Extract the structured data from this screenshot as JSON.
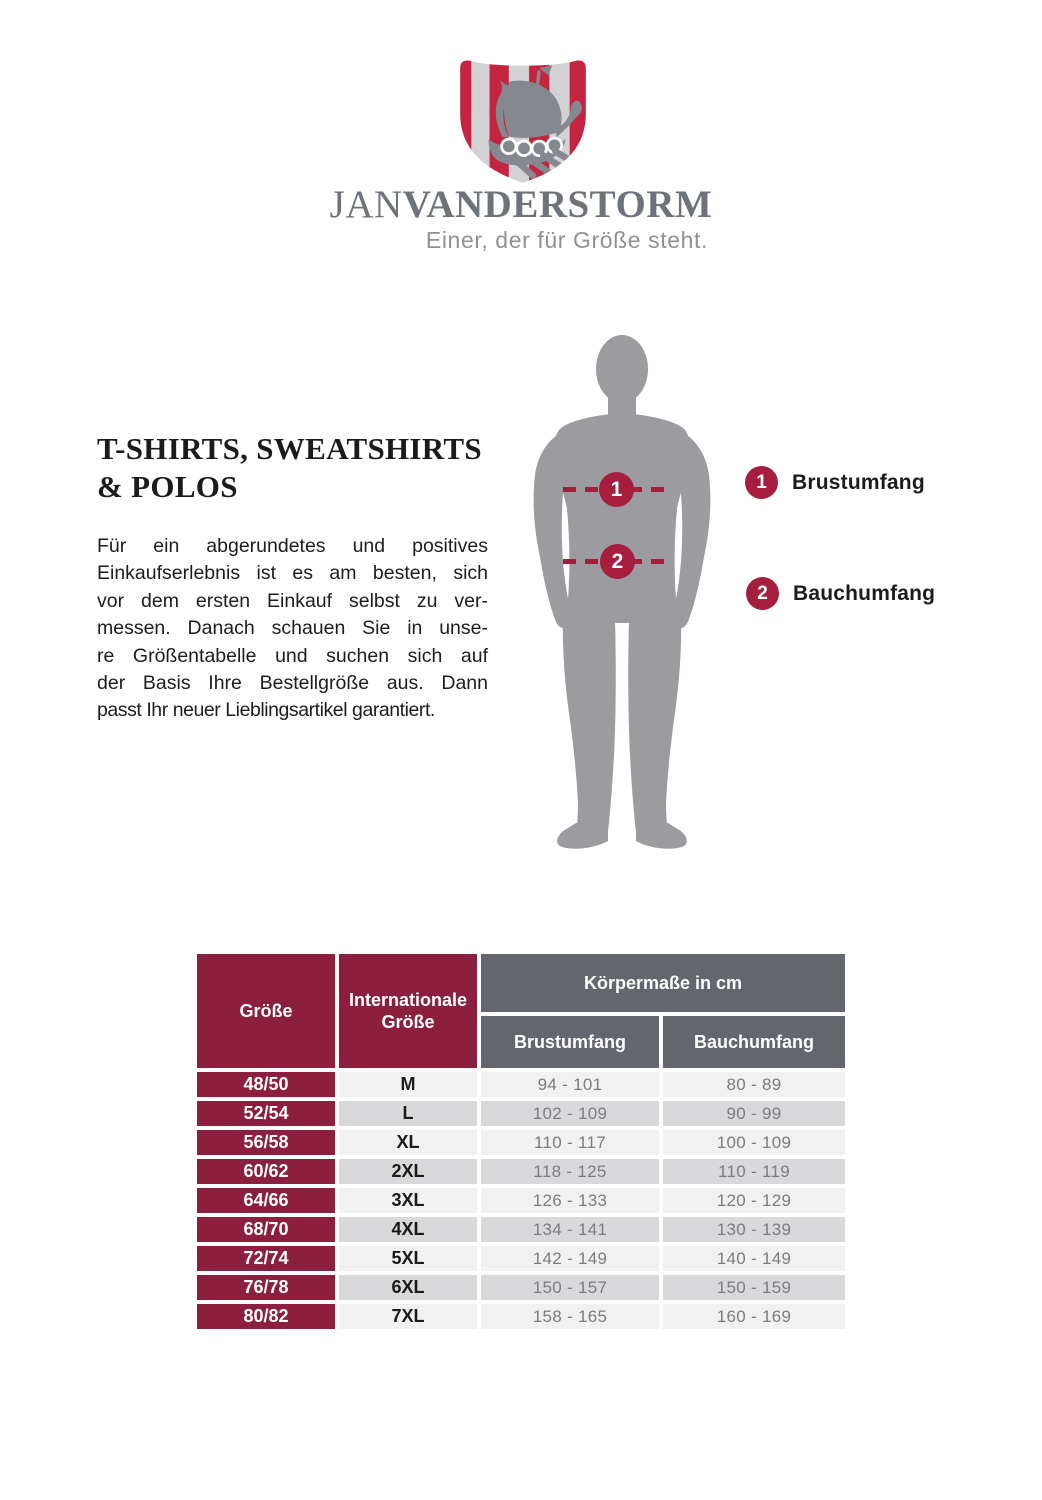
{
  "brand": {
    "name_light": "JAN",
    "name_bold": "VANDERSTORM",
    "tagline": "Einer, der für Größe steht.",
    "colors": {
      "stripe_red": "#c52441",
      "stripe_gray": "#d2d2d4",
      "ship_gray": "#85888e",
      "wordmark_gray": "#6e737b",
      "tagline_gray": "#8e9298"
    }
  },
  "section": {
    "heading_line1": "T-SHIRTS, SWEATSHIRTS",
    "heading_line2": "& POLOS",
    "paragraph_lines": [
      "Für ein abgerundetes und positives",
      "Einkaufserlebnis ist es am besten, sich",
      "vor dem ersten Einkauf selbst zu ver-",
      "messen. Danach schauen Sie in unse-",
      "re Größentabelle und suchen sich auf",
      "der Basis Ihre Bestellgröße aus. Dann",
      "passt Ihr neuer Lieblingsartikel garantiert."
    ]
  },
  "figure": {
    "silhouette_color": "#9b9ba0",
    "marker_color": "#a51e3e",
    "markers": [
      {
        "num": "1",
        "meaning": "Brustumfang"
      },
      {
        "num": "2",
        "meaning": "Bauchumfang"
      }
    ]
  },
  "legend": {
    "items": [
      {
        "num": "1",
        "label": "Brustumfang"
      },
      {
        "num": "2",
        "label": "Bauchumfang"
      }
    ]
  },
  "table": {
    "colors": {
      "header_red": "#8d1f3e",
      "header_gray": "#63666c",
      "row_light": "#f1f1f2",
      "row_dark": "#d9d9db"
    },
    "col_size": "Größe",
    "col_int": "Internationale Größe",
    "group_header": "Körpermaße in cm",
    "col_chest": "Brustumfang",
    "col_belly": "Bauchumfang",
    "rows": [
      {
        "size": "48/50",
        "int": "M",
        "chest": "94 - 101",
        "belly": "80 - 89"
      },
      {
        "size": "52/54",
        "int": "L",
        "chest": "102 - 109",
        "belly": "90 - 99"
      },
      {
        "size": "56/58",
        "int": "XL",
        "chest": "110 - 117",
        "belly": "100 - 109"
      },
      {
        "size": "60/62",
        "int": "2XL",
        "chest": "118 - 125",
        "belly": "110 - 119"
      },
      {
        "size": "64/66",
        "int": "3XL",
        "chest": "126 - 133",
        "belly": "120 - 129"
      },
      {
        "size": "68/70",
        "int": "4XL",
        "chest": "134 - 141",
        "belly": "130 - 139"
      },
      {
        "size": "72/74",
        "int": "5XL",
        "chest": "142 - 149",
        "belly": "140 - 149"
      },
      {
        "size": "76/78",
        "int": "6XL",
        "chest": "150 - 157",
        "belly": "150 - 159"
      },
      {
        "size": "80/82",
        "int": "7XL",
        "chest": "158 - 165",
        "belly": "160 - 169"
      }
    ]
  }
}
